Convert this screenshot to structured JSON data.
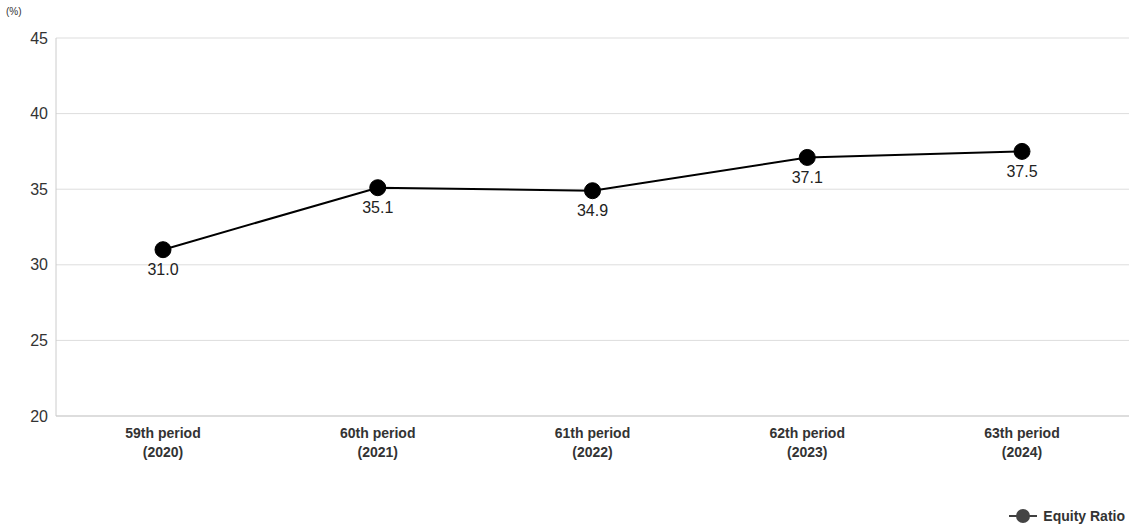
{
  "chart_data": {
    "type": "line",
    "ylabel": "(%)",
    "categories": [
      "59th period\n(2020)",
      "60th period\n(2021)",
      "61th period\n(2022)",
      "62th period\n(2023)",
      "63th period\n(2024)"
    ],
    "series": [
      {
        "name": "Equity Ratio",
        "color": "#000000",
        "marker": "circle",
        "values": [
          31.0,
          35.1,
          34.9,
          37.1,
          37.5
        ],
        "value_labels": [
          "31.0",
          "35.1",
          "34.9",
          "37.1",
          "37.5"
        ]
      }
    ],
    "ylim": [
      20,
      45
    ],
    "yticks": [
      20,
      25,
      30,
      35,
      40,
      45
    ],
    "grid": true,
    "legend": "lower right",
    "data_labels": true
  }
}
